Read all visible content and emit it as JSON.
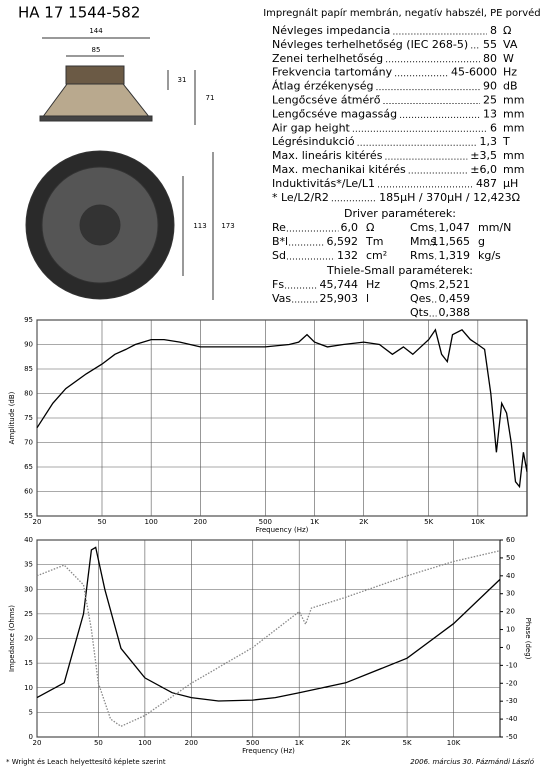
{
  "header": {
    "title": "HA 17 1544-582",
    "subtitle": "Impregnált papír membrán, negatív habszél, PE porvédő"
  },
  "drawing": {
    "dimensions": [
      "144",
      "85",
      "31",
      "71",
      "113",
      "173"
    ]
  },
  "specs": {
    "rows": [
      {
        "label": "Névleges impedancia",
        "value": "8",
        "unit": "Ω"
      },
      {
        "label": "Névleges terhelhetőség (IEC 268-5)",
        "value": "55",
        "unit": "VA"
      },
      {
        "label": "Zenei terhelhetőség",
        "value": "80",
        "unit": "W"
      },
      {
        "label": "Frekvencia tartomány",
        "value": "45-6000",
        "unit": "Hz"
      },
      {
        "label": "Átlag érzékenység",
        "value": "90",
        "unit": "dB"
      },
      {
        "label": "Lengőcséve átmérő",
        "value": "25",
        "unit": "mm"
      },
      {
        "label": "Lengőcséve magasság",
        "value": "13",
        "unit": "mm"
      },
      {
        "label": "Air gap height",
        "value": "6",
        "unit": "mm"
      },
      {
        "label": "Légrésindukció",
        "value": "1,3",
        "unit": "T"
      },
      {
        "label": "Max. lineáris kitérés",
        "value": "±3,5",
        "unit": "mm"
      },
      {
        "label": "Max. mechanikai kitérés",
        "value": "±6,0",
        "unit": "mm"
      },
      {
        "label": "Induktivitás*/Le/L1",
        "value": "487",
        "unit": "µH"
      },
      {
        "label": "* Le/L2/R2",
        "value": "185µH / 370µH / 12,423Ω"
      }
    ]
  },
  "driver": {
    "title": "Driver paraméterek:",
    "rows": [
      [
        {
          "name": "Re",
          "value": "6,0",
          "unit": "Ω"
        },
        {
          "name": "Cms",
          "value": "1,047",
          "unit": "mm/N"
        }
      ],
      [
        {
          "name": "B*l",
          "value": "6,592",
          "unit": "Tm"
        },
        {
          "name": "Mms",
          "value": "11,565",
          "unit": "g"
        }
      ],
      [
        {
          "name": "Sd",
          "value": "132",
          "unit": "cm²"
        },
        {
          "name": "Rms",
          "value": "1,319",
          "unit": "kg/s"
        }
      ]
    ]
  },
  "thiele_small": {
    "title": "Thiele-Small paraméterek:",
    "rows": [
      [
        {
          "name": "Fs",
          "value": "45,744",
          "unit": "Hz"
        },
        {
          "name": "Qms",
          "value": "2,521"
        }
      ],
      [
        {
          "name": "Vas",
          "value": "25,903",
          "unit": "l"
        },
        {
          "name": "Qes",
          "value": "0,459"
        }
      ],
      [
        {
          "name": "Qts",
          "value": "0,388"
        }
      ]
    ]
  },
  "chart_data": [
    {
      "type": "line",
      "x_label": "Frequency (Hz)",
      "y_label": "Amplitude (dB)",
      "log_x": true,
      "grid": true,
      "xlim": [
        20,
        20000
      ],
      "ylim": [
        55,
        95
      ],
      "xticks": [
        20,
        50,
        100,
        200,
        500,
        {
          "value": 1000,
          "label": "1K"
        },
        {
          "value": 2000,
          "label": "2K"
        },
        {
          "value": 5000,
          "label": "5K"
        },
        {
          "value": 10000,
          "label": "10K"
        }
      ],
      "yticks": [
        55,
        60,
        65,
        70,
        75,
        80,
        85,
        90,
        95
      ],
      "color": "#000000",
      "x": [
        20,
        25,
        30,
        40,
        50,
        60,
        70,
        80,
        100,
        120,
        150,
        200,
        300,
        500,
        700,
        800,
        900,
        1000,
        1200,
        1500,
        2000,
        2500,
        3000,
        3500,
        4000,
        5000,
        5500,
        6000,
        6500,
        7000,
        8000,
        9000,
        10000,
        11000,
        12000,
        13000,
        14000,
        15000,
        16000,
        17000,
        18000,
        19000,
        20000
      ],
      "values": [
        73,
        78,
        81,
        84,
        86,
        88,
        89,
        90,
        91,
        91,
        90.5,
        89.5,
        89.5,
        89.5,
        90,
        90.5,
        92,
        90.5,
        89.5,
        90,
        90.5,
        90,
        88,
        89.5,
        88,
        91,
        93,
        88,
        86.5,
        92,
        93,
        91,
        90,
        89,
        80,
        68,
        78,
        76,
        70,
        62,
        61,
        68,
        64
      ]
    },
    {
      "type": "line",
      "x_label": "Frequency (Hz)",
      "y_label": "Impedance (Ohms)",
      "y2_label": "Phase (deg)",
      "log_x": true,
      "grid": true,
      "xlim": [
        20,
        20000
      ],
      "ylim": [
        0,
        40
      ],
      "y2lim": [
        -50,
        60
      ],
      "xticks": [
        20,
        50,
        100,
        200,
        500,
        {
          "value": 1000,
          "label": "1K"
        },
        {
          "value": 2000,
          "label": "2K"
        },
        {
          "value": 5000,
          "label": "5K"
        },
        {
          "value": 10000,
          "label": "10K"
        }
      ],
      "yticks": [
        0,
        5,
        10,
        15,
        20,
        25,
        30,
        35,
        40
      ],
      "y2ticks": [
        -50,
        -40,
        -30,
        -20,
        -10,
        0,
        10,
        20,
        30,
        40,
        50,
        60
      ],
      "series": [
        {
          "color": "#000000",
          "x": [
            20,
            30,
            40,
            45,
            48,
            55,
            70,
            100,
            150,
            200,
            300,
            500,
            700,
            1000,
            2000,
            5000,
            10000,
            20000
          ],
          "values": [
            8,
            11,
            25,
            38,
            38.5,
            30,
            18,
            12,
            9,
            8,
            7.3,
            7.5,
            8,
            9,
            11,
            16,
            23,
            32
          ]
        },
        {
          "color": "#888888",
          "axis": "y2",
          "dashed": true,
          "x": [
            20,
            30,
            40,
            45,
            50,
            60,
            70,
            100,
            200,
            500,
            1000,
            1100,
            1200,
            2000,
            5000,
            10000,
            20000
          ],
          "values": [
            40,
            46,
            35,
            10,
            -20,
            -40,
            -44,
            -38,
            -20,
            0,
            20,
            13,
            22,
            28,
            40,
            48,
            54
          ]
        }
      ]
    }
  ],
  "footer": {
    "note": "* Wright és Leach helyettesítő képlete szerint",
    "signature": "2006. március 30. Pázmándi László"
  }
}
